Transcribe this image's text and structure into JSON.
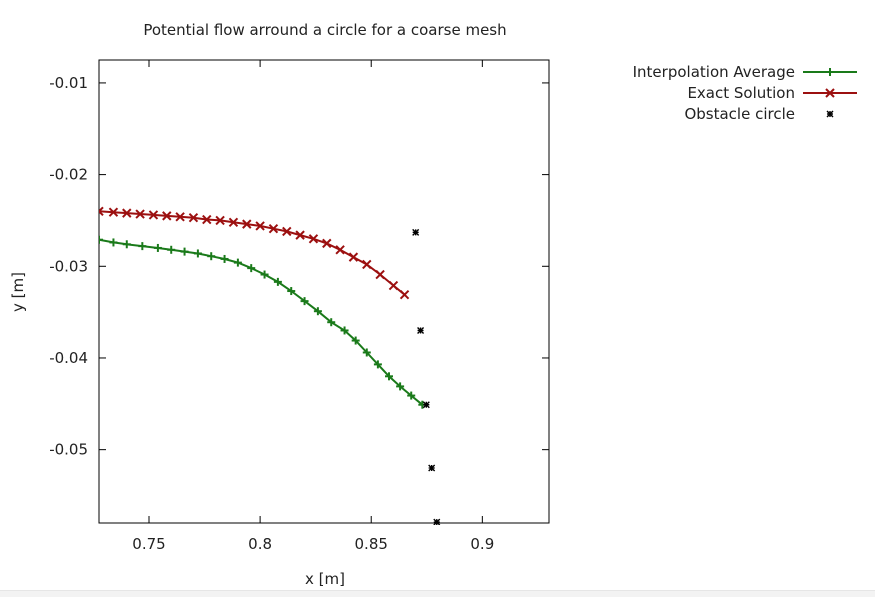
{
  "chart_data": {
    "type": "line",
    "title": "Potential flow arround a circle for a coarse mesh",
    "xlabel": "x [m]",
    "ylabel": "y [m]",
    "xlim": [
      0.7275,
      0.93
    ],
    "ylim": [
      -0.058,
      -0.0075
    ],
    "x_ticks": [
      0.75,
      0.8,
      0.85,
      0.9
    ],
    "x_tick_labels": [
      "0.75",
      "0.8",
      "0.85",
      "0.9"
    ],
    "y_ticks": [
      -0.01,
      -0.02,
      -0.03,
      -0.04,
      -0.05
    ],
    "y_tick_labels": [
      "-0.01",
      "-0.02",
      "-0.03",
      "-0.04",
      "-0.05"
    ],
    "grid": false,
    "legend_position": "top-right, outside plot",
    "series": [
      {
        "name": "Interpolation Average",
        "color": "#1a7a1a",
        "marker": "plus",
        "style": "linespoints",
        "x": [
          0.7275,
          0.734,
          0.74,
          0.747,
          0.754,
          0.76,
          0.766,
          0.772,
          0.778,
          0.784,
          0.79,
          0.796,
          0.802,
          0.808,
          0.814,
          0.82,
          0.826,
          0.832,
          0.838,
          0.843,
          0.848,
          0.853,
          0.858,
          0.863,
          0.868,
          0.873
        ],
        "y": [
          -0.0271,
          -0.0274,
          -0.0276,
          -0.0278,
          -0.028,
          -0.0282,
          -0.0284,
          -0.0286,
          -0.0289,
          -0.0292,
          -0.0296,
          -0.0302,
          -0.0309,
          -0.0317,
          -0.0327,
          -0.0338,
          -0.0349,
          -0.0361,
          -0.037,
          -0.0381,
          -0.0394,
          -0.0407,
          -0.042,
          -0.0431,
          -0.0441,
          -0.0451
        ]
      },
      {
        "name": "Exact Solution",
        "color": "#9c1010",
        "marker": "cross",
        "style": "linespoints",
        "x": [
          0.7275,
          0.734,
          0.74,
          0.746,
          0.752,
          0.758,
          0.764,
          0.77,
          0.776,
          0.782,
          0.788,
          0.794,
          0.8,
          0.806,
          0.812,
          0.818,
          0.824,
          0.83,
          0.836,
          0.842,
          0.848,
          0.854,
          0.86,
          0.865
        ],
        "y": [
          -0.024,
          -0.0241,
          -0.0242,
          -0.0243,
          -0.0244,
          -0.0245,
          -0.0246,
          -0.0247,
          -0.0249,
          -0.025,
          -0.0252,
          -0.0254,
          -0.0256,
          -0.0259,
          -0.0262,
          -0.0266,
          -0.027,
          -0.0275,
          -0.0282,
          -0.029,
          -0.0298,
          -0.0309,
          -0.0321,
          -0.0331
        ]
      },
      {
        "name": "Obstacle circle",
        "color": "#000000",
        "marker": "star",
        "style": "points",
        "x": [
          0.87,
          0.8722,
          0.8748,
          0.8772,
          0.8795
        ],
        "y": [
          -0.0263,
          -0.037,
          -0.0451,
          -0.052,
          -0.0579
        ]
      }
    ]
  }
}
